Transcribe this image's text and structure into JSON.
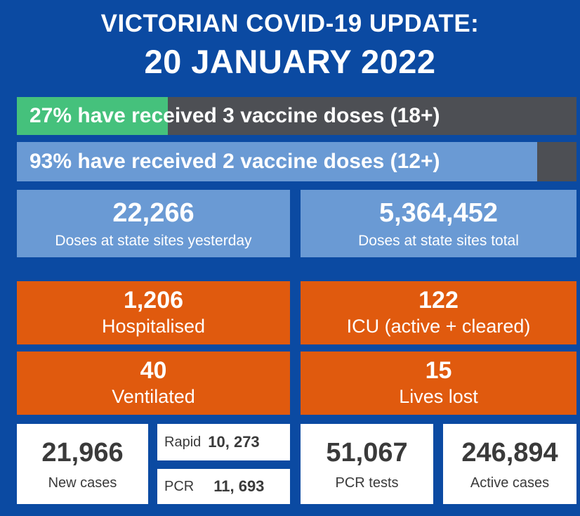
{
  "header": {
    "title_line1": "VICTORIAN COVID-19 UPDATE:",
    "title_line2": "20 JANUARY 2022"
  },
  "vaccination_bars": [
    {
      "text": "27% have received 3 vaccine doses (18+)",
      "percent": 27,
      "fill_color": "#45c17c"
    },
    {
      "text": "93% have received 2 vaccine doses (12+)",
      "percent": 93,
      "fill_color": "#6a9ad4"
    }
  ],
  "doses": {
    "yesterday": {
      "value": "22,266",
      "label": "Doses at state sites yesterday"
    },
    "total": {
      "value": "5,364,452",
      "label": "Doses at state sites total"
    }
  },
  "hospital": {
    "hospitalised": {
      "value": "1,206",
      "label": "Hospitalised"
    },
    "icu": {
      "value": "122",
      "label": "ICU (active + cleared)"
    },
    "ventilated": {
      "value": "40",
      "label": "Ventilated"
    },
    "lives_lost": {
      "value": "15",
      "label": "Lives lost"
    }
  },
  "cases": {
    "new_cases": {
      "value": "21,966",
      "label": "New cases"
    },
    "rapid": {
      "label": "Rapid",
      "value": "10, 273"
    },
    "pcr": {
      "label": "PCR",
      "value": "11, 693"
    },
    "pcr_tests": {
      "value": "51,067",
      "label": "PCR tests"
    },
    "active_cases": {
      "value": "246,894",
      "label": "Active cases"
    }
  },
  "colors": {
    "background": "#0b4aa2",
    "bar_track": "#4d4f54",
    "green": "#45c17c",
    "light_blue": "#6a9ad4",
    "orange": "#e05a0e",
    "white": "#ffffff"
  }
}
